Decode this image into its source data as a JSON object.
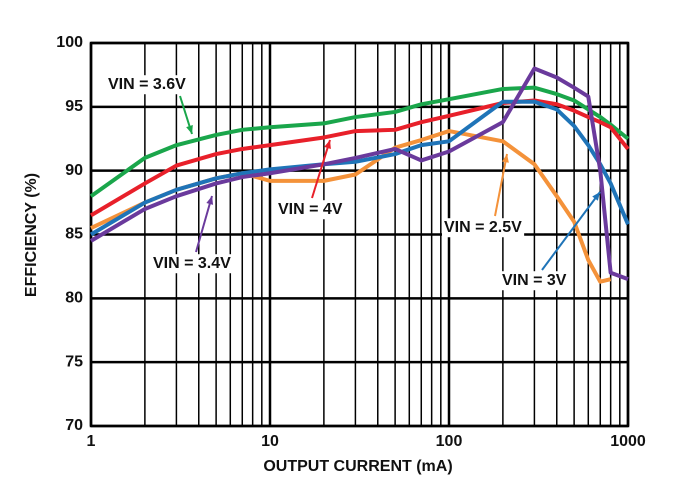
{
  "chart_data": {
    "type": "line",
    "x_label": "OUTPUT CURRENT (mA)",
    "y_label": "EFFICIENCY (%)",
    "x_scale": "log",
    "x": [
      1,
      2,
      3,
      5,
      7,
      10,
      20,
      30,
      50,
      70,
      100,
      200,
      300,
      400,
      500,
      600,
      700,
      800,
      1000
    ],
    "series": [
      {
        "name": "VIN = 3.6V",
        "color": "#1aa64b",
        "values": [
          88,
          91,
          92,
          92.8,
          93.2,
          93.4,
          93.7,
          94.2,
          94.6,
          95.2,
          95.6,
          96.4,
          96.5,
          96,
          95.5,
          94.8,
          94.2,
          93.6,
          92.5
        ]
      },
      {
        "name": "VIN = 4V",
        "color": "#e8202a",
        "values": [
          86.5,
          89,
          90.4,
          91.3,
          91.7,
          92,
          92.6,
          93.1,
          93.2,
          93.8,
          94.3,
          95.3,
          95.5,
          95.2,
          94.7,
          94.2,
          93.8,
          93.4,
          91.7
        ]
      },
      {
        "name": "VIN = 2.5V",
        "color": "#f4923a",
        "values": [
          85.5,
          87.5,
          88.5,
          89.4,
          89.8,
          89.2,
          89.2,
          89.7,
          91.8,
          92.4,
          93.1,
          92.3,
          90.5,
          88,
          86,
          83,
          81.3,
          81.5,
          null
        ]
      },
      {
        "name": "VIN = 3V",
        "color": "#1f74b8",
        "values": [
          85,
          87.5,
          88.5,
          89.4,
          89.8,
          90.1,
          90.5,
          90.7,
          91.3,
          92,
          92.3,
          95.4,
          95.4,
          94.8,
          93.5,
          92,
          90.5,
          89,
          85.8
        ]
      },
      {
        "name": "VIN = 3.4V",
        "color": "#6a3a9c",
        "values": [
          84.5,
          87,
          88,
          89,
          89.5,
          89.8,
          90.5,
          91,
          91.7,
          90.8,
          91.5,
          93.8,
          98,
          97.3,
          96.5,
          95.8,
          90,
          82,
          81.5
        ]
      }
    ],
    "xlim": [
      1,
      1000
    ],
    "xticks": [
      1,
      10,
      100,
      1000
    ],
    "ylim": [
      70,
      100
    ],
    "yticks": [
      70,
      75,
      80,
      85,
      90,
      95,
      100
    ],
    "grid": true
  }
}
